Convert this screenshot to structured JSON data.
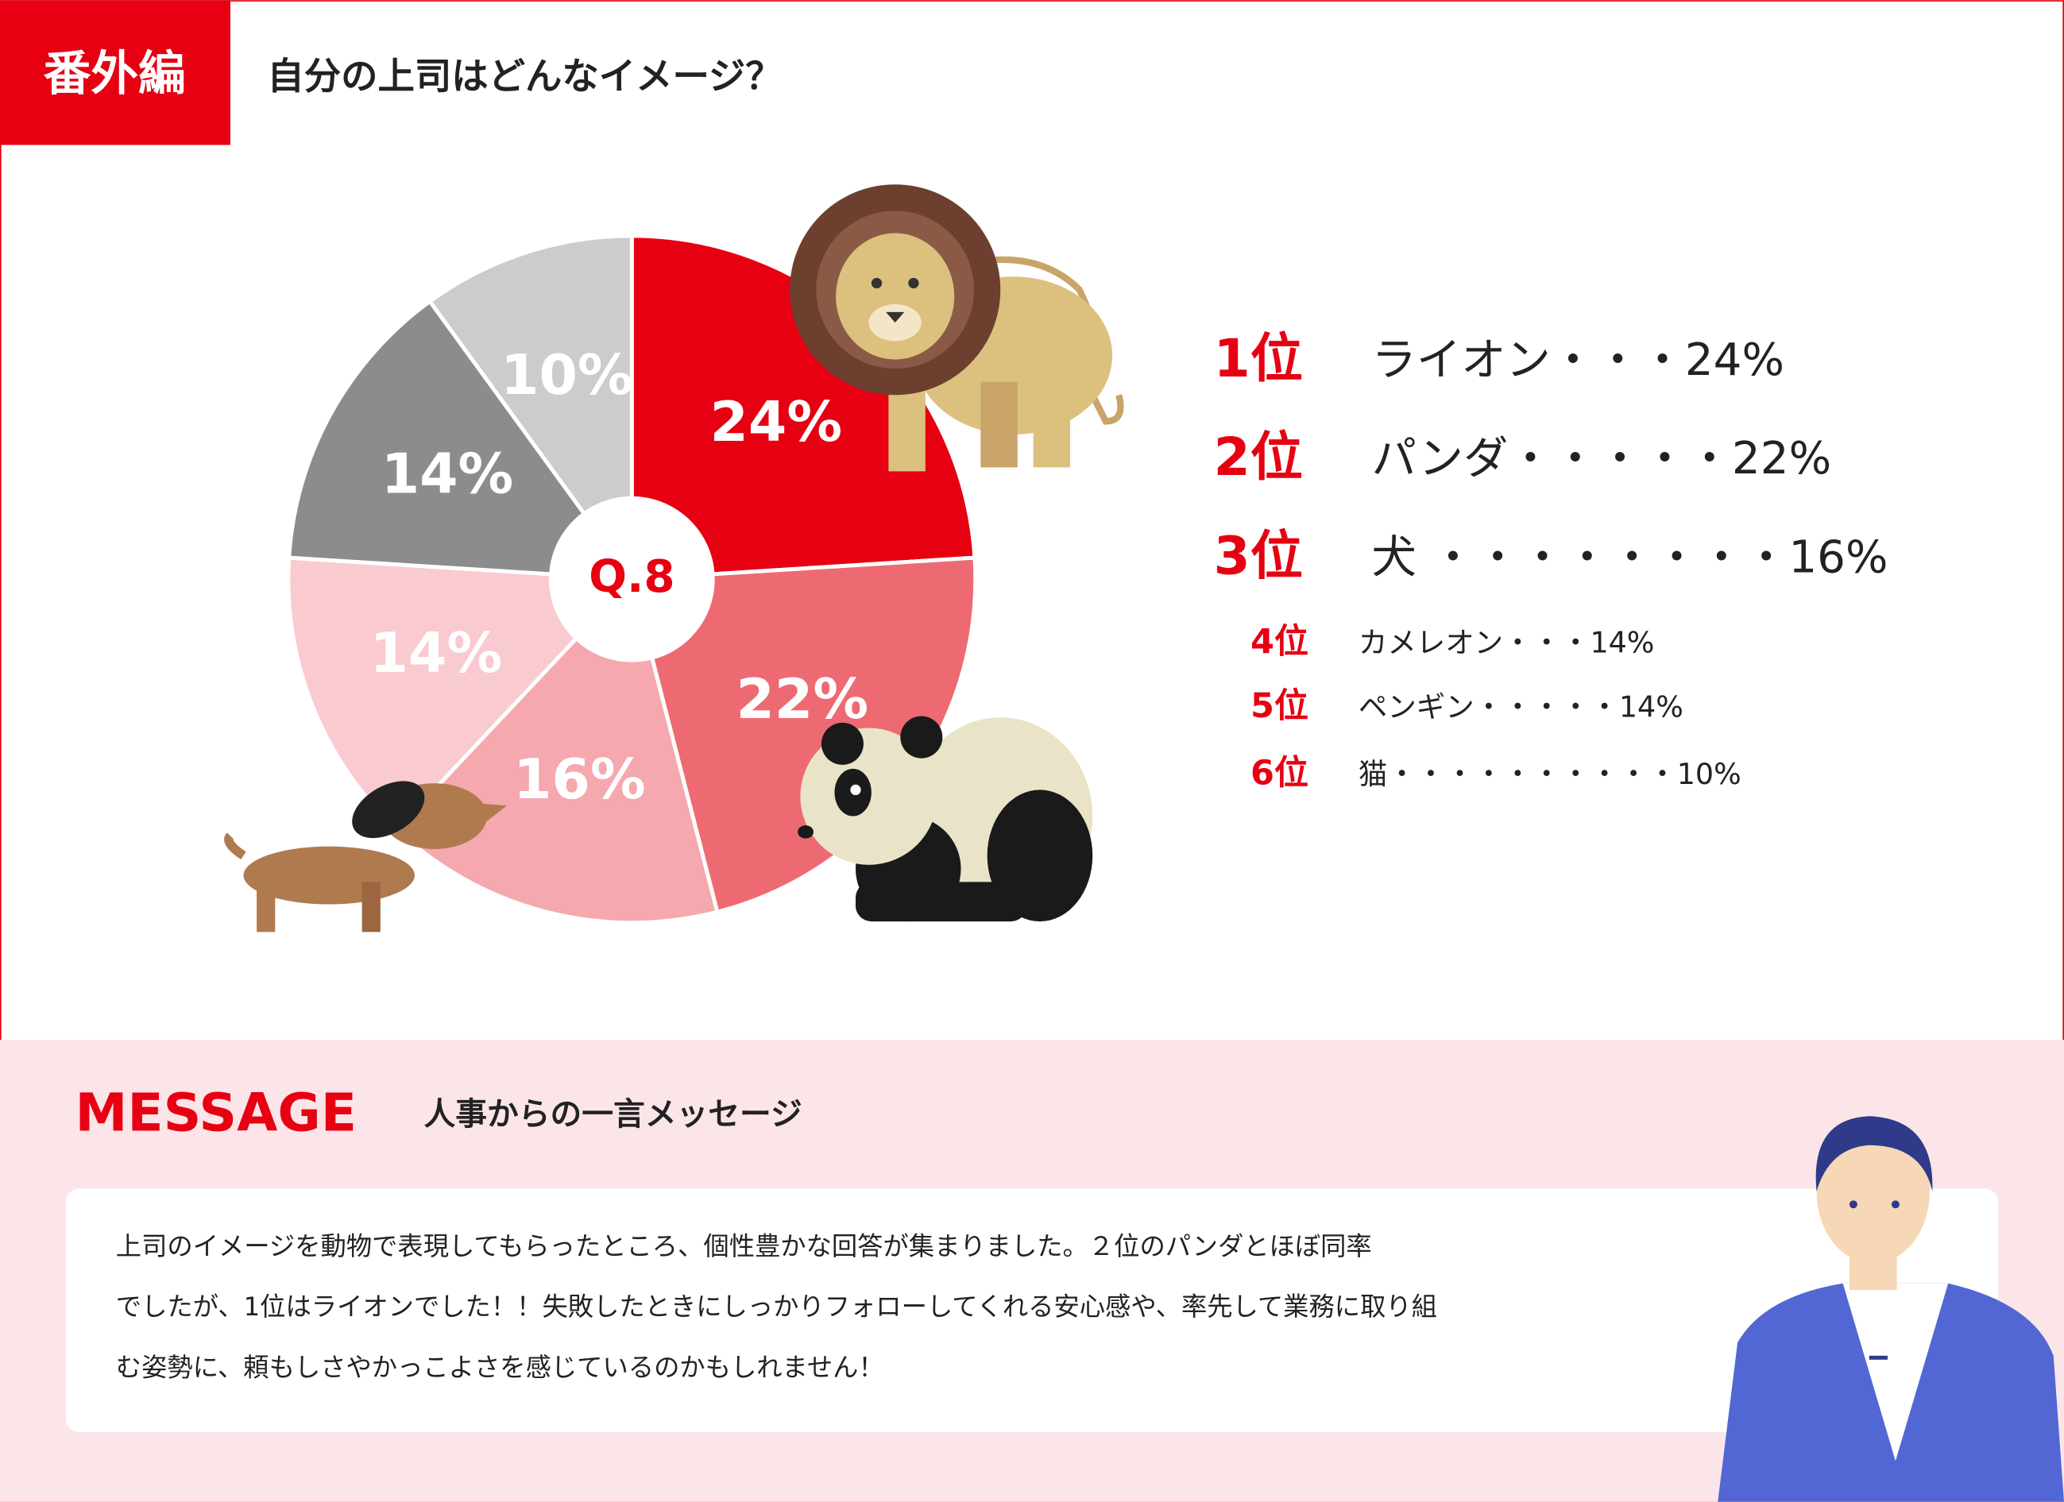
{
  "header": {
    "badge": "番外編",
    "title": "自分の上司はどんなイメージ？"
  },
  "chart_data": {
    "type": "pie",
    "center_label": "Q.8",
    "categories": [
      "ライオン",
      "パンダ",
      "犬",
      "カメレオン",
      "ペンギン",
      "猫"
    ],
    "values": [
      24,
      22,
      16,
      14,
      14,
      10
    ],
    "value_labels": [
      "24%",
      "22%",
      "16%",
      "14%",
      "14%",
      "10%"
    ],
    "colors": [
      "#e60012",
      "#ee6a73",
      "#f5a8ae",
      "#f9cacf",
      "#8c8c8c",
      "#cccccc"
    ]
  },
  "ranking": {
    "ranks": [
      "1位",
      "2位",
      "3位",
      "4位",
      "5位",
      "6位"
    ],
    "leaders": [
      "・・・",
      "・・・・・",
      " ・・・・・・・・",
      "・・・",
      "・・・・・",
      "・・・・・・・・・・"
    ]
  },
  "message": {
    "heading": "MESSAGE",
    "subheading": "人事からの一言メッセージ",
    "body": [
      "上司のイメージを動物で表現してもらったところ、個性豊かな回答が集まりました。２位のパンダとほぼ同率",
      "でしたが、1位はライオンでした！！失敗したときにしっかりフォローしてくれる安心感や、率先して業務に取り組",
      "む姿勢に、頼もしさやかっこよさを感じているのかもしれません！"
    ]
  }
}
